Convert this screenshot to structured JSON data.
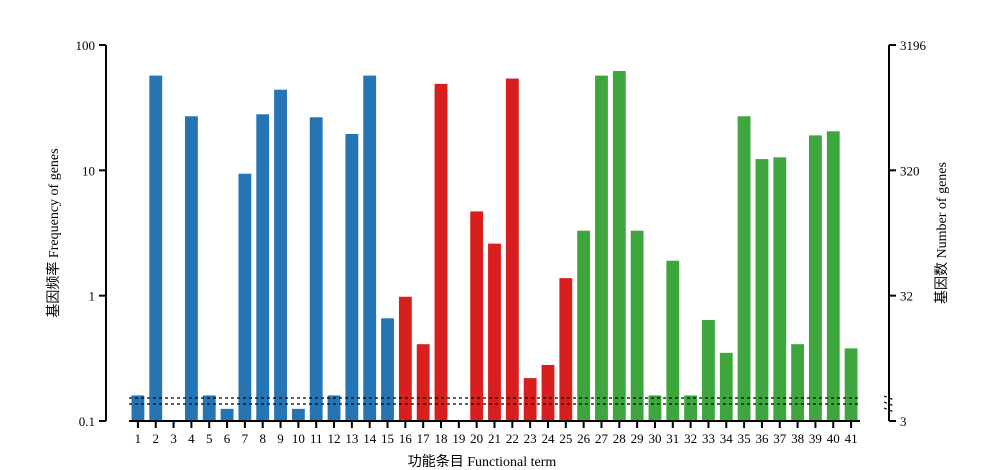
{
  "chart_data": {
    "type": "bar",
    "xlabel": "功能条目 Functional term",
    "ylabel_left": "基因频率 Frequency of genes",
    "ylabel_right": "基因数 Number of genes",
    "y_scale": "log",
    "ylim": [
      0.1,
      100
    ],
    "left_ticks": [
      {
        "value": 0.1,
        "label": "0.1"
      },
      {
        "value": 1,
        "label": "1"
      },
      {
        "value": 10,
        "label": "10"
      },
      {
        "value": 100,
        "label": "100"
      }
    ],
    "right_ticks": [
      {
        "value": 0.1,
        "label": "3"
      },
      {
        "value": 1,
        "label": "32"
      },
      {
        "value": 10,
        "label": "320"
      },
      {
        "value": 100,
        "label": "3196"
      }
    ],
    "categories": [
      "1",
      "2",
      "3",
      "4",
      "5",
      "6",
      "7",
      "8",
      "9",
      "10",
      "11",
      "12",
      "13",
      "14",
      "15",
      "16",
      "17",
      "18",
      "19",
      "20",
      "21",
      "22",
      "23",
      "24",
      "25",
      "26",
      "27",
      "28",
      "29",
      "30",
      "31",
      "32",
      "33",
      "34",
      "35",
      "36",
      "37",
      "38",
      "39",
      "40",
      "41"
    ],
    "values": [
      0.16,
      57,
      null,
      27,
      0.16,
      0.125,
      9.4,
      28,
      44,
      0.125,
      26.5,
      0.16,
      19.5,
      57,
      0.66,
      0.98,
      0.41,
      49,
      null,
      4.7,
      2.6,
      54,
      0.22,
      0.28,
      1.38,
      3.3,
      57,
      62,
      3.3,
      0.16,
      1.9,
      0.16,
      0.64,
      0.35,
      27,
      12.3,
      12.7,
      0.41,
      19,
      20.5,
      0.38
    ],
    "colors": [
      "#2575b5",
      "#2575b5",
      "#2575b5",
      "#2575b5",
      "#2575b5",
      "#2575b5",
      "#2575b5",
      "#2575b5",
      "#2575b5",
      "#2575b5",
      "#2575b5",
      "#2575b5",
      "#2575b5",
      "#2575b5",
      "#2575b5",
      "#d91e1e",
      "#d91e1e",
      "#d91e1e",
      "#d91e1e",
      "#d91e1e",
      "#d91e1e",
      "#d91e1e",
      "#d91e1e",
      "#d91e1e",
      "#d91e1e",
      "#3da63d",
      "#3da63d",
      "#3da63d",
      "#3da63d",
      "#3da63d",
      "#3da63d",
      "#3da63d",
      "#3da63d",
      "#3da63d",
      "#3da63d",
      "#3da63d",
      "#3da63d",
      "#3da63d",
      "#3da63d",
      "#3da63d",
      "#3da63d"
    ],
    "group_colors": {
      "group1": "#2575b5",
      "group2": "#d91e1e",
      "group3": "#3da63d"
    },
    "grid": false,
    "axis_break_at_bottom": true
  }
}
